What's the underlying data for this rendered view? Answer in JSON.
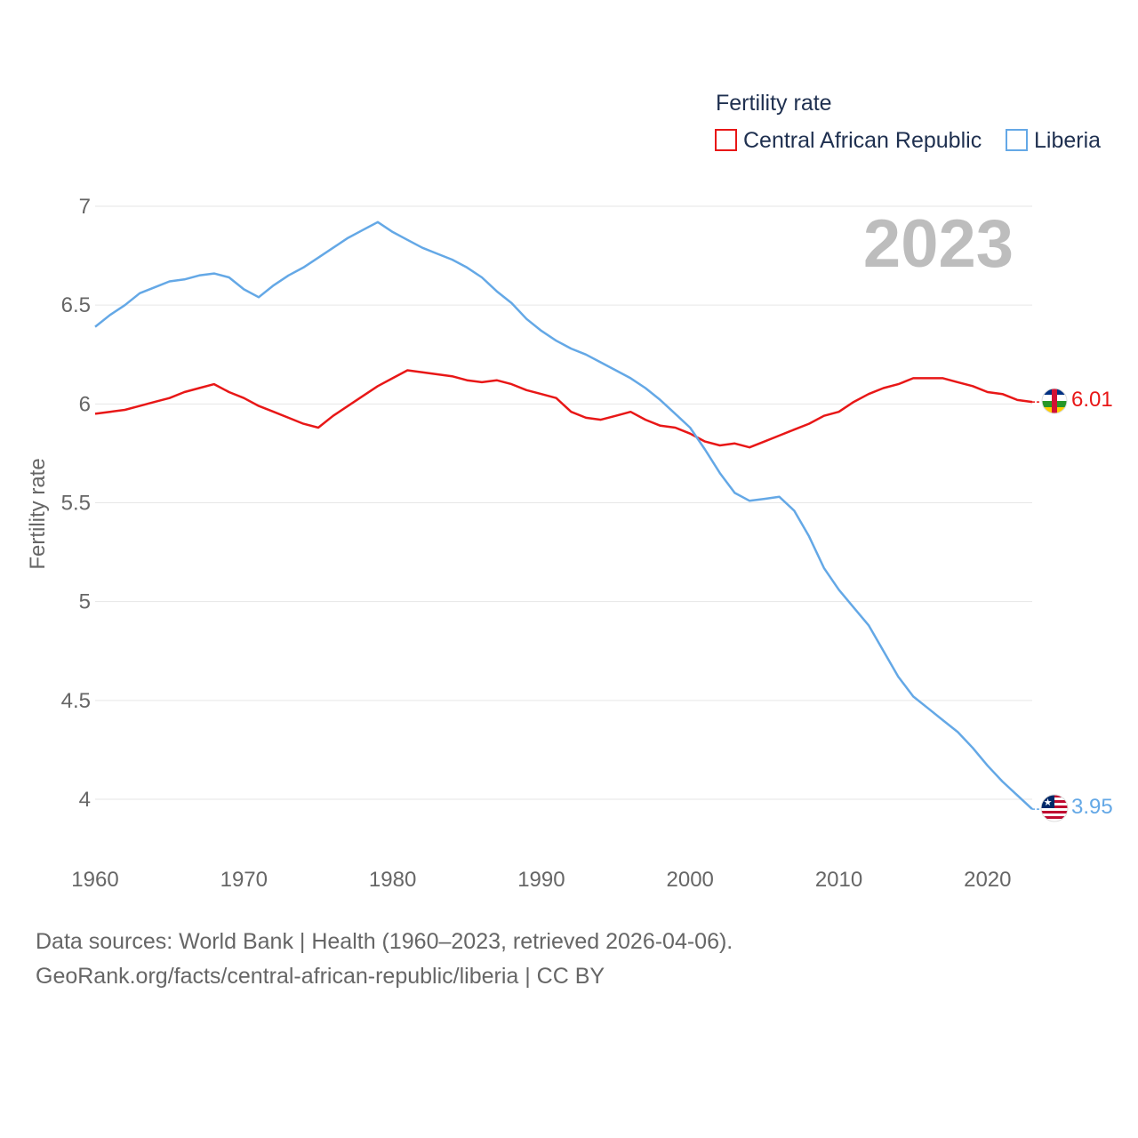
{
  "legend": {
    "title": "Fertility rate",
    "items": [
      {
        "label": "Central African Republic",
        "color": "#e81717"
      },
      {
        "label": "Liberia",
        "color": "#64a8e6"
      }
    ]
  },
  "year_label": "2023",
  "footer": {
    "line1": "Data sources: World Bank | Health (1960–2023, retrieved 2026-04-06).",
    "line2": "GeoRank.org/facts/central-african-republic/liberia | CC BY"
  },
  "chart_data": {
    "type": "line",
    "title": "",
    "xlabel": "",
    "ylabel": "Fertility rate",
    "xlim": [
      1960,
      2023
    ],
    "ylim": [
      4,
      7
    ],
    "yticks": [
      "4",
      "4.5",
      "5",
      "5.5",
      "6",
      "6.5",
      "7"
    ],
    "xticks": [
      "1960",
      "1970",
      "1980",
      "1990",
      "2000",
      "2010",
      "2020"
    ],
    "x": [
      1960,
      1961,
      1962,
      1963,
      1964,
      1965,
      1966,
      1967,
      1968,
      1969,
      1970,
      1971,
      1972,
      1973,
      1974,
      1975,
      1976,
      1977,
      1978,
      1979,
      1980,
      1981,
      1982,
      1983,
      1984,
      1985,
      1986,
      1987,
      1988,
      1989,
      1990,
      1991,
      1992,
      1993,
      1994,
      1995,
      1996,
      1997,
      1998,
      1999,
      2000,
      2001,
      2002,
      2003,
      2004,
      2005,
      2006,
      2007,
      2008,
      2009,
      2010,
      2011,
      2012,
      2013,
      2014,
      2015,
      2016,
      2017,
      2018,
      2019,
      2020,
      2021,
      2022,
      2023
    ],
    "series": [
      {
        "name": "Central African Republic",
        "color": "#e81717",
        "end_label": "6.01",
        "flag": "central-african-republic-flag",
        "values": [
          5.95,
          5.96,
          5.97,
          5.99,
          6.01,
          6.03,
          6.06,
          6.08,
          6.1,
          6.06,
          6.03,
          5.99,
          5.96,
          5.93,
          5.9,
          5.88,
          5.94,
          5.99,
          6.04,
          6.09,
          6.13,
          6.17,
          6.16,
          6.15,
          6.14,
          6.12,
          6.11,
          6.12,
          6.1,
          6.07,
          6.05,
          6.03,
          5.96,
          5.93,
          5.92,
          5.94,
          5.96,
          5.92,
          5.89,
          5.88,
          5.85,
          5.81,
          5.79,
          5.8,
          5.78,
          5.81,
          5.84,
          5.87,
          5.9,
          5.94,
          5.96,
          6.01,
          6.05,
          6.08,
          6.1,
          6.13,
          6.13,
          6.13,
          6.11,
          6.09,
          6.06,
          6.05,
          6.02,
          6.01
        ]
      },
      {
        "name": "Liberia",
        "color": "#64a8e6",
        "end_label": "3.95",
        "flag": "liberia-flag",
        "values": [
          6.39,
          6.45,
          6.5,
          6.56,
          6.59,
          6.62,
          6.63,
          6.65,
          6.66,
          6.64,
          6.58,
          6.54,
          6.6,
          6.65,
          6.69,
          6.74,
          6.79,
          6.84,
          6.88,
          6.92,
          6.87,
          6.83,
          6.79,
          6.76,
          6.73,
          6.69,
          6.64,
          6.57,
          6.51,
          6.43,
          6.37,
          6.32,
          6.28,
          6.25,
          6.21,
          6.17,
          6.13,
          6.08,
          6.02,
          5.95,
          5.88,
          5.77,
          5.65,
          5.55,
          5.51,
          5.52,
          5.53,
          5.46,
          5.33,
          5.17,
          5.06,
          4.97,
          4.88,
          4.75,
          4.62,
          4.52,
          4.46,
          4.4,
          4.34,
          4.26,
          4.17,
          4.09,
          4.02,
          3.95
        ]
      }
    ]
  }
}
